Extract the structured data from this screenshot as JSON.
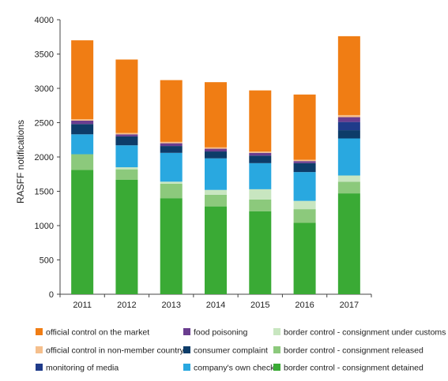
{
  "chart_data": {
    "type": "bar",
    "stacked": true,
    "title": "",
    "xlabel": "",
    "ylabel": "RASFF notifications",
    "ylim": [
      0,
      4000
    ],
    "yticks": [
      0,
      500,
      1000,
      1500,
      2000,
      2500,
      3000,
      3500,
      4000
    ],
    "grid": false,
    "legend_position": "bottom",
    "categories": [
      "2011",
      "2012",
      "2013",
      "2014",
      "2015",
      "2016",
      "2017"
    ],
    "series": [
      {
        "name": "border control - consignment detained",
        "color": "#3aaa35",
        "values": [
          1810,
          1670,
          1400,
          1280,
          1210,
          1040,
          1470
        ]
      },
      {
        "name": "border control - consignment released",
        "color": "#8cc97c",
        "values": [
          230,
          150,
          210,
          170,
          170,
          200,
          170
        ]
      },
      {
        "name": "border control - consignment under customs",
        "color": "#c8e6c0",
        "values": [
          0,
          30,
          30,
          70,
          150,
          120,
          90
        ]
      },
      {
        "name": "company's own check",
        "color": "#29a8e0",
        "values": [
          290,
          320,
          420,
          460,
          380,
          420,
          540
        ]
      },
      {
        "name": "consumer complaint",
        "color": "#0d3c69",
        "values": [
          150,
          130,
          100,
          100,
          110,
          130,
          120
        ]
      },
      {
        "name": "monitoring of media",
        "color": "#1f3b8a",
        "values": [
          0,
          0,
          0,
          0,
          0,
          0,
          120
        ]
      },
      {
        "name": "food poisoning",
        "color": "#6a3d8f",
        "values": [
          50,
          30,
          40,
          40,
          40,
          30,
          70
        ]
      },
      {
        "name": "official control in non-member country",
        "color": "#f5bf8c",
        "values": [
          20,
          20,
          20,
          20,
          20,
          20,
          30
        ]
      },
      {
        "name": "official control on the market",
        "color": "#f07d14",
        "values": [
          1150,
          1070,
          900,
          950,
          890,
          950,
          1150
        ]
      }
    ],
    "legend": [
      [
        "official control on the market",
        "food poisoning",
        "border control - consignment under customs"
      ],
      [
        "official control in non-member country",
        "consumer complaint",
        "border control - consignment released"
      ],
      [
        "monitoring of media",
        "company's own check",
        "border control - consignment detained"
      ]
    ]
  }
}
